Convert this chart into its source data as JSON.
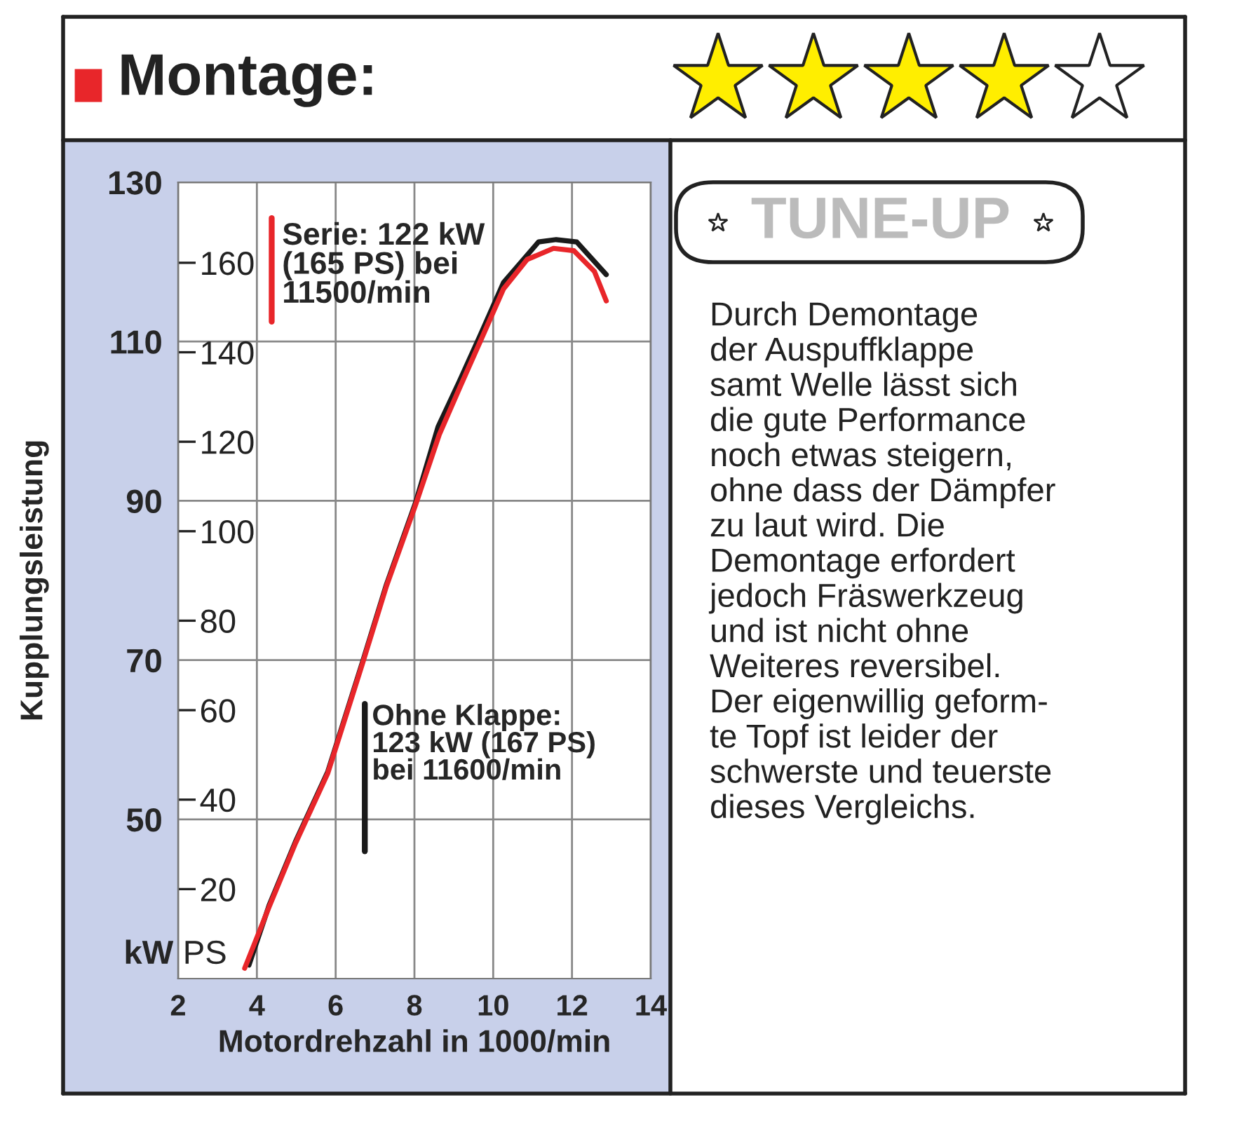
{
  "chart_data": {
    "type": "line",
    "title": "Montage:",
    "xlabel": "Motordrehzahl in 1000/min",
    "ylabel": "Kupplungsleistung",
    "series": [
      {
        "color": "#1a1a1a",
        "x": [
          3.8,
          4.31,
          4.98,
          5.8,
          6.69,
          7.29,
          8.03,
          8.6,
          9.14,
          9.67,
          10.26,
          11.15,
          11.6,
          12.12,
          12.87
        ],
        "values": [
          31.7,
          39.2,
          47.2,
          56,
          69.9,
          79.5,
          89.8,
          99.3,
          105.0,
          110.8,
          117.4,
          122.5,
          122.8,
          122.5,
          118.4
        ]
      },
      {
        "color": "#e8262a",
        "x": [
          3.69,
          4.31,
          4.98,
          5.8,
          6.69,
          7.29,
          8.03,
          8.63,
          9.14,
          9.67,
          10.26,
          10.86,
          11.53,
          12.05,
          12.57,
          12.87
        ],
        "values": [
          31.3,
          39.0,
          47.0,
          55.8,
          69.7,
          79.3,
          89.5,
          98.3,
          104.1,
          110.0,
          116.6,
          120.3,
          121.7,
          121.4,
          118.8,
          115.1
        ]
      }
    ],
    "xlim": [
      2,
      14
    ],
    "xticks": [
      2,
      4,
      6,
      8,
      10,
      12,
      14
    ],
    "ylim": [
      30,
      130
    ],
    "yticks": [
      50,
      70,
      90,
      110,
      130
    ],
    "y2lim": [
      0,
      178
    ],
    "y2ticks": [
      20,
      40,
      60,
      80,
      100,
      120,
      140,
      160
    ],
    "grid": true,
    "legend": false,
    "annotations": [
      "kW",
      "PS",
      "Serie: 122 kW\n(165 PS) bei\n11500/min",
      "Ohne Klappe:\n123 kW (167 PS)\nbei 11600/min",
      "TUNE-UP",
      "Durch Demontage\nder Auspuffklappe\nsamt Welle lässt sich\ndie gute Performance\nnoch etwas steigern,\nohne dass der Dämpfer\nzu laut wird. Die\nDemontage erfordert\njedoch Fräswerkzeug\nund ist nicht ohne\nWeiteres reversibel.\nDer eigenwillig geform-\nte Topf ist leider der\nschwerste und teuerste\ndieses Vergleichs."
    ]
  }
}
